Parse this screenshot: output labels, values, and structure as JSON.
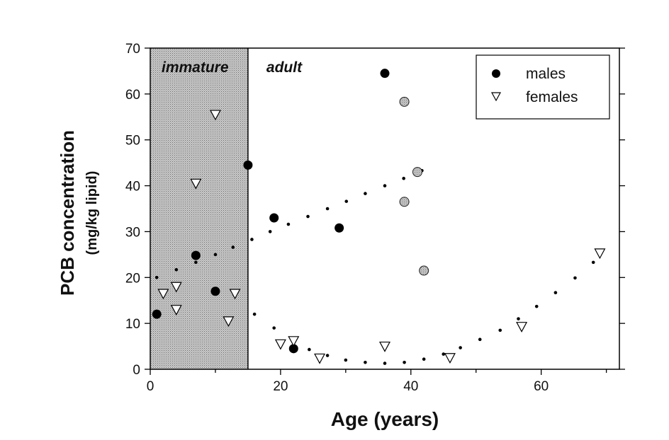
{
  "chart_data": {
    "type": "scatter",
    "title": "",
    "xlabel": "Age (years)",
    "ylabel": "PCB concentration",
    "ylabel_sub": "(mg/kg lipid)",
    "xlim": [
      0,
      72
    ],
    "ylim": [
      0,
      70
    ],
    "x_ticks": [
      0,
      20,
      40,
      60
    ],
    "y_ticks": [
      0,
      10,
      20,
      30,
      40,
      50,
      60,
      70
    ],
    "grid": false,
    "legend_position": "top-right",
    "regions": [
      {
        "label": "immature",
        "x_start": 0,
        "x_end": 15,
        "fill": "#bdbdbd"
      },
      {
        "label": "adult",
        "x_start": 15,
        "x_end": 72,
        "fill": "#ffffff"
      }
    ],
    "series": [
      {
        "name": "males",
        "marker": "filled-circle",
        "color": "#000000",
        "points": [
          {
            "x": 1,
            "y": 12
          },
          {
            "x": 7,
            "y": 24.8
          },
          {
            "x": 10,
            "y": 17
          },
          {
            "x": 15,
            "y": 44.5
          },
          {
            "x": 19,
            "y": 33
          },
          {
            "x": 22,
            "y": 4.5
          },
          {
            "x": 29,
            "y": 30.8
          },
          {
            "x": 36,
            "y": 64.5
          }
        ]
      },
      {
        "name": "",
        "marker": "gray-circle",
        "color": "#bbbbbb",
        "points": [
          {
            "x": 39,
            "y": 58.3
          },
          {
            "x": 39,
            "y": 36.5
          },
          {
            "x": 41,
            "y": 43
          },
          {
            "x": 42,
            "y": 21.5
          }
        ]
      },
      {
        "name": "females",
        "marker": "open-triangle-down",
        "color": "#000000",
        "points": [
          {
            "x": 2,
            "y": 16.5
          },
          {
            "x": 4,
            "y": 18
          },
          {
            "x": 4,
            "y": 13
          },
          {
            "x": 7,
            "y": 40.5
          },
          {
            "x": 10,
            "y": 55.5
          },
          {
            "x": 12,
            "y": 10.5
          },
          {
            "x": 13,
            "y": 16.5
          },
          {
            "x": 20,
            "y": 5.5
          },
          {
            "x": 22,
            "y": 6.2
          },
          {
            "x": 26,
            "y": 2.4
          },
          {
            "x": 36,
            "y": 5
          },
          {
            "x": 46,
            "y": 2.5
          },
          {
            "x": 57,
            "y": 9.3
          },
          {
            "x": 69,
            "y": 25.3
          }
        ]
      }
    ],
    "trend_lines": [
      {
        "style": "dotted",
        "color": "#000000",
        "points": [
          {
            "x": 1,
            "y": 20
          },
          {
            "x": 4,
            "y": 21.7
          },
          {
            "x": 7,
            "y": 23.3
          },
          {
            "x": 10,
            "y": 25
          },
          {
            "x": 12.7,
            "y": 26.6
          },
          {
            "x": 15.6,
            "y": 28.3
          },
          {
            "x": 18.4,
            "y": 30
          },
          {
            "x": 21.2,
            "y": 31.6
          },
          {
            "x": 24.2,
            "y": 33.3
          },
          {
            "x": 27.2,
            "y": 35
          },
          {
            "x": 30.1,
            "y": 36.6
          },
          {
            "x": 33,
            "y": 38.3
          },
          {
            "x": 36,
            "y": 40
          },
          {
            "x": 38.9,
            "y": 41.6
          },
          {
            "x": 41.7,
            "y": 43.3
          }
        ]
      },
      {
        "style": "dotted",
        "color": "#000000",
        "points": [
          {
            "x": 16,
            "y": 12
          },
          {
            "x": 19,
            "y": 9
          },
          {
            "x": 21.7,
            "y": 6.6
          },
          {
            "x": 24.4,
            "y": 4.3
          },
          {
            "x": 27.2,
            "y": 3
          },
          {
            "x": 30,
            "y": 2
          },
          {
            "x": 33,
            "y": 1.5
          },
          {
            "x": 36,
            "y": 1.3
          },
          {
            "x": 39,
            "y": 1.5
          },
          {
            "x": 42,
            "y": 2.2
          },
          {
            "x": 45,
            "y": 3.3
          },
          {
            "x": 47.6,
            "y": 4.7
          },
          {
            "x": 50.6,
            "y": 6.5
          },
          {
            "x": 53.7,
            "y": 8.5
          },
          {
            "x": 56.5,
            "y": 11
          },
          {
            "x": 59.3,
            "y": 13.7
          },
          {
            "x": 62.2,
            "y": 16.7
          },
          {
            "x": 65.2,
            "y": 19.9
          },
          {
            "x": 68,
            "y": 23.3
          }
        ]
      }
    ]
  }
}
